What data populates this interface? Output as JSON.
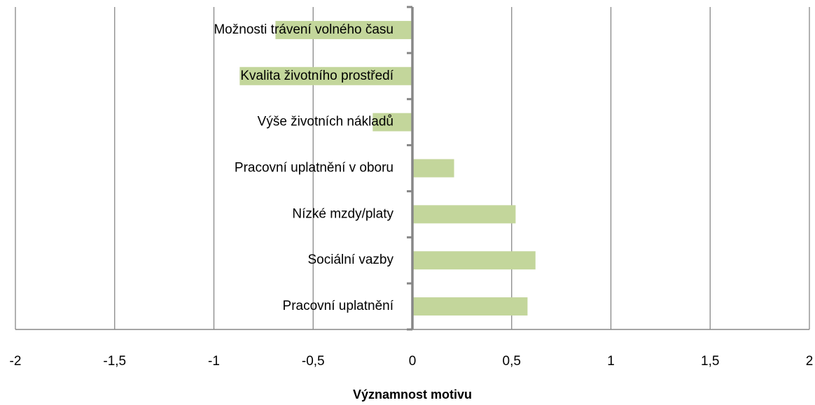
{
  "chart_data": {
    "type": "barh",
    "categories": [
      "Možnosti trávení volného času",
      "Kvalita životního prostředí",
      "Výše životních nákladů",
      "Pracovní uplatnění v oboru",
      "Nízké mzdy/platy",
      "Sociální vazby",
      "Pracovní uplatnění"
    ],
    "values": [
      -0.69,
      -0.87,
      -0.2,
      0.21,
      0.52,
      0.62,
      0.58
    ],
    "color": "#c3d69b",
    "xlabel": "Významnost motivu",
    "xlim": [
      -2,
      2
    ],
    "xticks": [
      -2,
      {
        "value": -1.5,
        "label": "-1,5"
      },
      -1,
      {
        "value": -0.5,
        "label": "-0,5"
      },
      0,
      {
        "value": 0.5,
        "label": "0,5"
      },
      1,
      {
        "value": 1.5,
        "label": "1,5"
      },
      2
    ],
    "grid": true
  }
}
